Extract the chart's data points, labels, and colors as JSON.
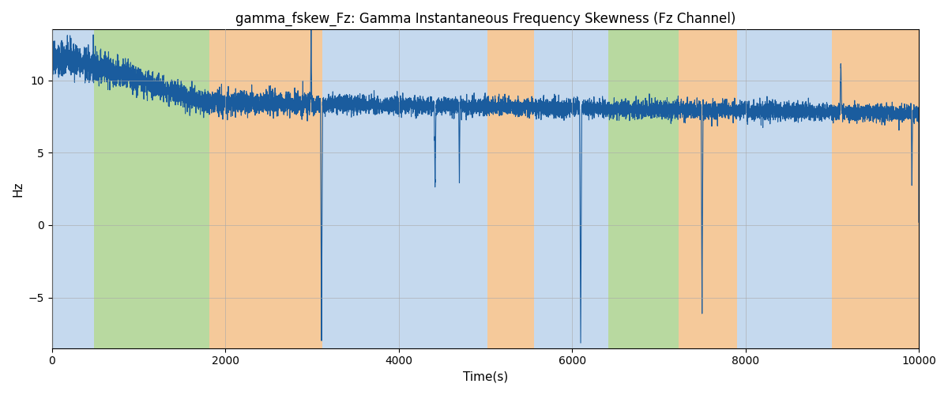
{
  "title": "gamma_fskew_Fz: Gamma Instantaneous Frequency Skewness (Fz Channel)",
  "xlabel": "Time(s)",
  "ylabel": "Hz",
  "xlim": [
    0,
    10000
  ],
  "ylim": [
    -8.5,
    13.5
  ],
  "background_bands": [
    {
      "start": 0,
      "end": 490,
      "color": "#c5d9ee"
    },
    {
      "start": 490,
      "end": 1820,
      "color": "#b8d9a0"
    },
    {
      "start": 1820,
      "end": 3120,
      "color": "#f5c99a"
    },
    {
      "start": 3120,
      "end": 3560,
      "color": "#c5d9ee"
    },
    {
      "start": 3560,
      "end": 5020,
      "color": "#c5d9ee"
    },
    {
      "start": 5020,
      "end": 5560,
      "color": "#f5c99a"
    },
    {
      "start": 5560,
      "end": 6180,
      "color": "#c5d9ee"
    },
    {
      "start": 6180,
      "end": 6420,
      "color": "#c5d9ee"
    },
    {
      "start": 6420,
      "end": 7230,
      "color": "#b8d9a0"
    },
    {
      "start": 7230,
      "end": 7900,
      "color": "#f5c99a"
    },
    {
      "start": 7900,
      "end": 9000,
      "color": "#c5d9ee"
    },
    {
      "start": 9000,
      "end": 10100,
      "color": "#f5c99a"
    }
  ],
  "line_color": "#1a5c9e",
  "line_width": 0.8,
  "grid_color": "#aaaaaa",
  "grid_alpha": 0.6,
  "title_fontsize": 12,
  "axis_fontsize": 11,
  "seed": 42
}
